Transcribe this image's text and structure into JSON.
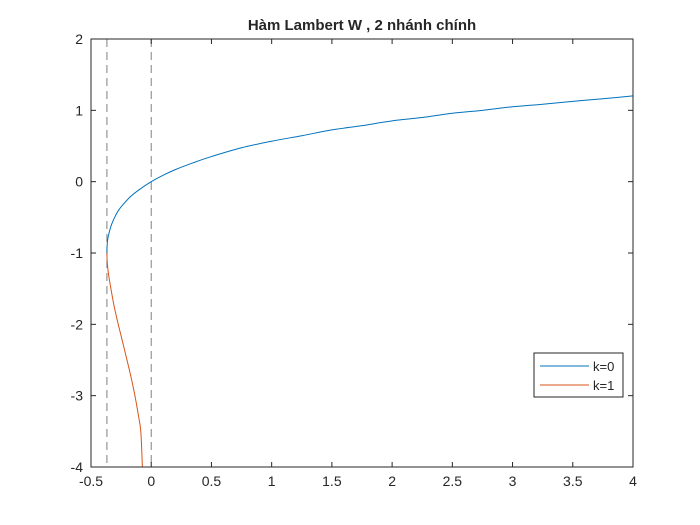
{
  "chart_data": {
    "type": "line",
    "title": "Hàm Lambert W , 2 nhánh chính",
    "xlabel": "",
    "ylabel": "",
    "xlim": [
      -0.5,
      4
    ],
    "ylim": [
      -4,
      2
    ],
    "xticks": [
      "-0.5",
      "0",
      "0.5",
      "1",
      "1.5",
      "2",
      "2.5",
      "3",
      "3.5",
      "4"
    ],
    "yticks": [
      "2",
      "1",
      "0",
      "-1",
      "-2",
      "-3",
      "-4"
    ],
    "grid": false,
    "legend_position": "east",
    "reference_lines": [
      {
        "orientation": "vertical",
        "x": -0.3679,
        "style": "dashed",
        "color": "#808080"
      },
      {
        "orientation": "vertical",
        "x": 0,
        "style": "dashed",
        "color": "#808080"
      }
    ],
    "series": [
      {
        "name": "k=0",
        "color": "#0072BD",
        "x": [
          -0.3679,
          -0.3662,
          -0.3604,
          -0.3474,
          -0.3292,
          -0.3033,
          -0.2707,
          -0.2233,
          -0.1657,
          -0.1,
          0,
          0.1,
          0.2,
          0.35,
          0.5,
          0.75,
          1,
          1.25,
          1.5,
          1.75,
          2,
          2.25,
          2.5,
          2.75,
          3,
          3.25,
          3.5,
          3.75,
          4
        ],
        "y": [
          -1,
          -0.9,
          -0.8,
          -0.7,
          -0.6,
          -0.5,
          -0.4,
          -0.3,
          -0.2,
          -0.112,
          0,
          0.0913,
          0.1689,
          0.2657,
          0.3517,
          0.4751,
          0.5671,
          0.6444,
          0.7259,
          0.7849,
          0.8526,
          0.8991,
          0.9586,
          0.9993,
          1.0499,
          1.0856,
          1.1261,
          1.1617,
          1.2022
        ]
      },
      {
        "name": "k=1",
        "color": "#D95319",
        "x": [
          -0.3679,
          -0.3662,
          -0.3614,
          -0.3543,
          -0.3347,
          -0.3075,
          -0.2738,
          -0.2371,
          -0.2014,
          -0.1663,
          -0.1353,
          -0.1091,
          -0.0867,
          -0.0733
        ],
        "y": [
          -1,
          -1.1,
          -1.2,
          -1.3,
          -1.5,
          -1.75,
          -2,
          -2.25,
          -2.5,
          -2.75,
          -3,
          -3.25,
          -3.5,
          -4
        ]
      }
    ]
  }
}
